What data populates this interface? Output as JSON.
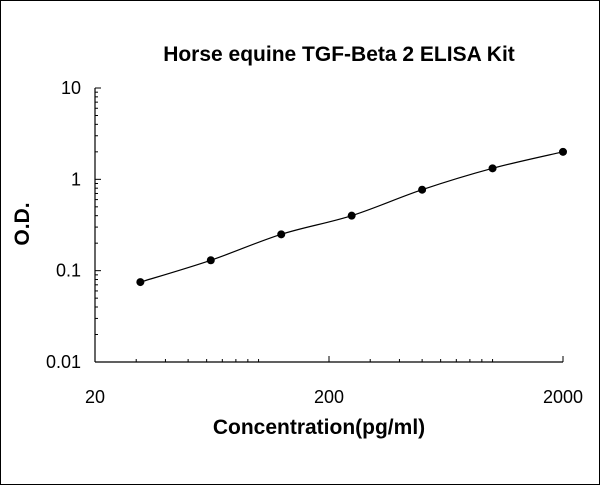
{
  "chart_data": {
    "type": "line",
    "title": "Horse equine TGF-Beta 2 ELISA Kit",
    "xlabel": "Concentration(pg/ml)",
    "ylabel": "O.D.",
    "x_scale": "log",
    "y_scale": "log",
    "xlim": [
      20,
      2000
    ],
    "ylim": [
      0.01,
      10
    ],
    "x_ticks": [
      {
        "value": 20,
        "label": "20"
      },
      {
        "value": 200,
        "label": "200"
      },
      {
        "value": 2000,
        "label": "2000"
      }
    ],
    "y_ticks": [
      {
        "value": 0.01,
        "label": "0.01"
      },
      {
        "value": 0.1,
        "label": "0.1"
      },
      {
        "value": 1,
        "label": "1"
      },
      {
        "value": 10,
        "label": "10"
      }
    ],
    "grid": false,
    "legend": "none",
    "series": [
      {
        "points": [
          {
            "x": 31.25,
            "y": 0.075
          },
          {
            "x": 62.5,
            "y": 0.13
          },
          {
            "x": 125,
            "y": 0.25
          },
          {
            "x": 250,
            "y": 0.4
          },
          {
            "x": 500,
            "y": 0.77
          },
          {
            "x": 1000,
            "y": 1.32
          },
          {
            "x": 2000,
            "y": 2.0
          }
        ],
        "fit_curve": true,
        "color": "#000000"
      }
    ]
  }
}
